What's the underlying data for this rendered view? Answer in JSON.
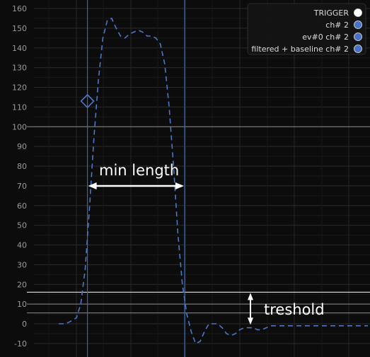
{
  "chart_data": {
    "type": "line",
    "title": "",
    "xlabel": "",
    "ylabel": "",
    "ylim": [
      -15,
      163
    ],
    "grid": true,
    "y_ticks": [
      -10,
      0,
      10,
      20,
      30,
      40,
      50,
      60,
      70,
      80,
      90,
      100,
      110,
      120,
      130,
      140,
      150,
      160
    ],
    "legend": {
      "placement": "top-right",
      "entries": [
        {
          "label": "TRIGGER",
          "color": "#ffffff"
        },
        {
          "label": "ch# 2",
          "color": "#4a72c4"
        },
        {
          "label": "ev#0 ch# 2",
          "color": "#4a72c4"
        },
        {
          "label": "filtered + baseline ch# 2",
          "color": "#4a72c4"
        }
      ]
    },
    "series": [
      {
        "color": "#4a78c8",
        "style": "dashed",
        "x": [
          0,
          3,
          5,
          8,
          10,
          12,
          14,
          16,
          18,
          20,
          22,
          24,
          26,
          28,
          30,
          32,
          34,
          36,
          38,
          40,
          42,
          44,
          46,
          48,
          50,
          52,
          54,
          56,
          58,
          60,
          62,
          64,
          66,
          68,
          70,
          72,
          74,
          76,
          78,
          80,
          82,
          84,
          86,
          88,
          90,
          92,
          94,
          96,
          98,
          100,
          102,
          104,
          106,
          108,
          110,
          112,
          114,
          116,
          118,
          120,
          122,
          124,
          126,
          128,
          130,
          132,
          134,
          136,
          138,
          140
        ],
        "y": [
          0,
          0,
          1,
          3,
          10,
          28,
          60,
          95,
          124,
          145,
          154,
          155,
          150,
          146,
          145,
          147,
          148,
          149,
          148,
          146,
          146,
          145,
          142,
          132,
          110,
          80,
          45,
          20,
          5,
          -4,
          -10,
          -9,
          -4,
          0,
          0,
          0,
          -2,
          -5,
          -6,
          -5,
          -3,
          -2,
          -2,
          -2,
          -3,
          -3,
          -2,
          -1,
          -1,
          -1,
          -1,
          -1,
          -1,
          -1,
          -1,
          -1,
          -1,
          -1,
          -1,
          -1,
          -1,
          -1,
          -1,
          -1,
          -1,
          -1,
          -1,
          -1,
          -1,
          -1
        ]
      }
    ],
    "marker": {
      "shape": "diamond",
      "x": 13,
      "y": 113,
      "color": "#4a78c8"
    },
    "horizontal_lines": [
      100,
      16,
      10,
      5.5
    ],
    "vertical_lines": [
      13,
      57
    ],
    "annotations": {
      "min_length_label": "min length",
      "threshold_label": "treshold"
    }
  }
}
